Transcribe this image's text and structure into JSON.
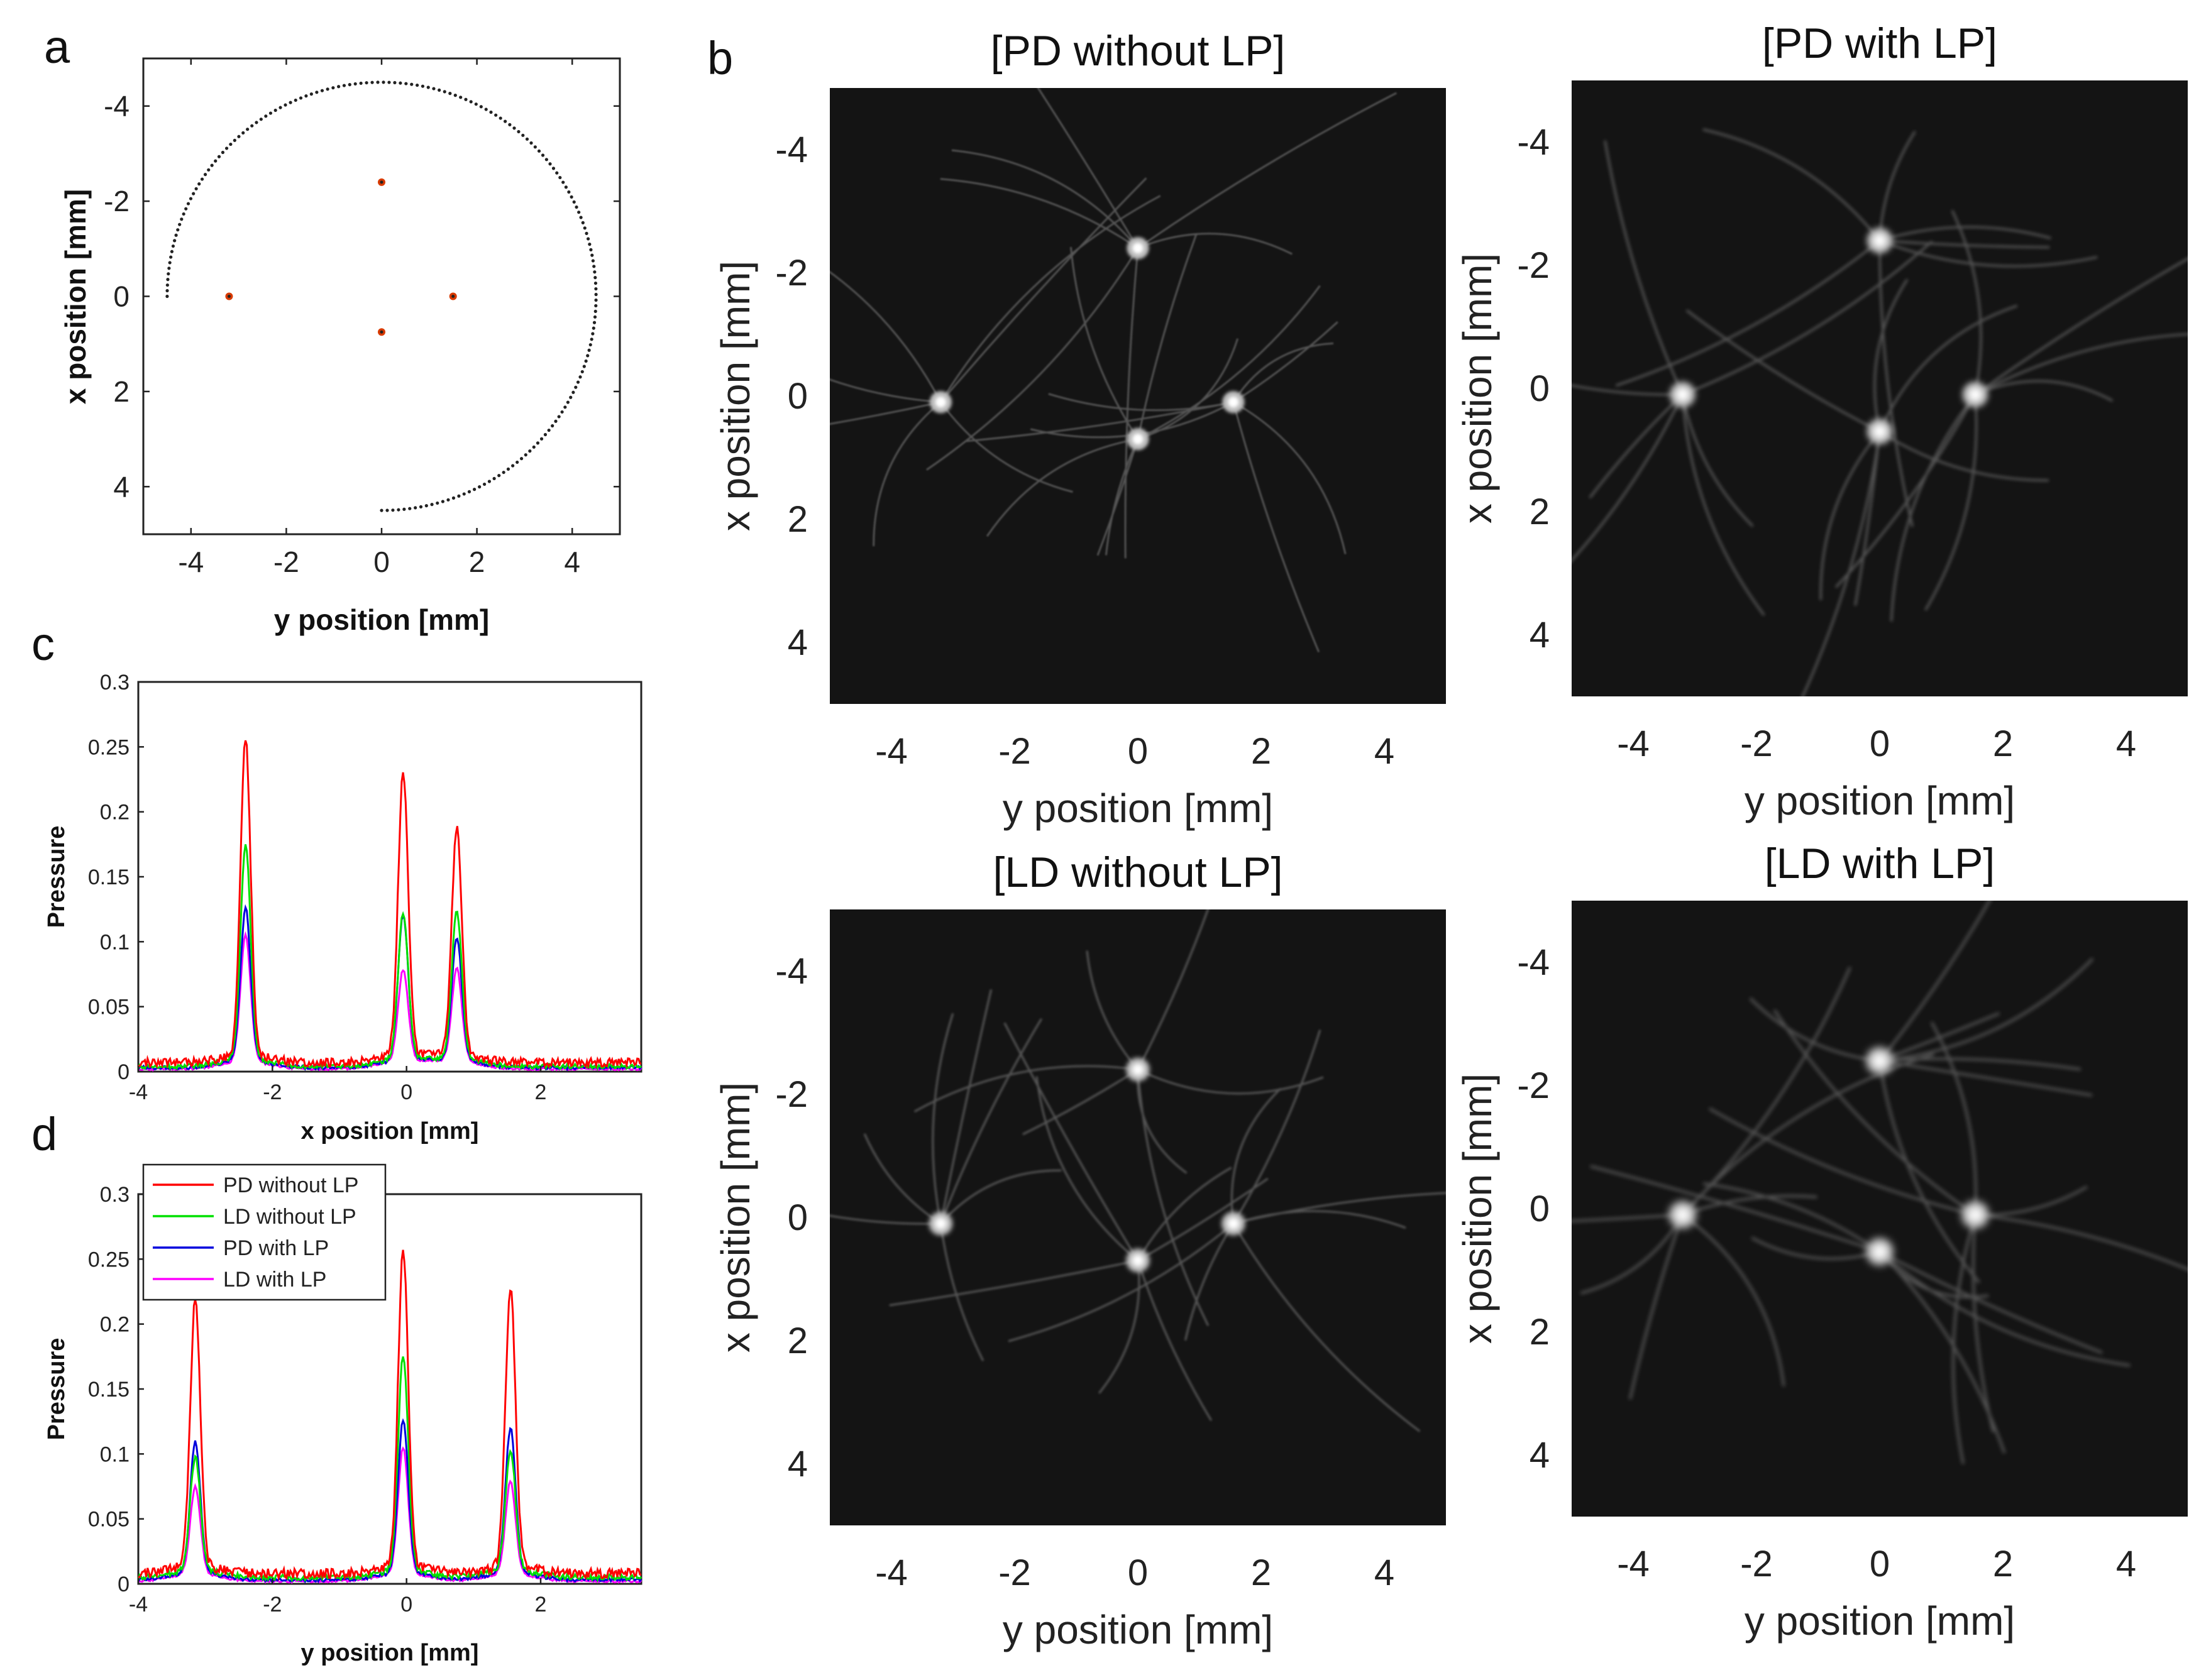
{
  "panel_labels": {
    "a": "a",
    "b": "b",
    "c": "c",
    "d": "d"
  },
  "chart_data": [
    {
      "id": "a",
      "type": "scatter",
      "title": "",
      "xlabel": "y position [mm]",
      "ylabel": "x position [mm]",
      "xlim": [
        -5,
        5
      ],
      "ylim": [
        -5,
        5
      ],
      "y_reversed": true,
      "xticks": [
        -4,
        -2,
        0,
        2,
        4
      ],
      "yticks": [
        -4,
        -2,
        0,
        2,
        4
      ],
      "grid": false,
      "ring": {
        "center_y": 0,
        "center_x": 0,
        "radius": 4.5,
        "start_deg": 180,
        "sweep_deg": 270,
        "points": 180
      },
      "targets": [
        {
          "y": 0,
          "x": -2.4
        },
        {
          "y": -3.2,
          "x": 0.0
        },
        {
          "y": 1.5,
          "x": 0.0
        },
        {
          "y": 0,
          "x": 0.75
        }
      ],
      "target_color": "#d83a00",
      "target_core_color": "#222222"
    },
    {
      "id": "c",
      "type": "line",
      "xlabel": "x position [mm]",
      "ylabel": "Pressure",
      "xlim": [
        -4,
        3.5
      ],
      "ylim": [
        0,
        0.3
      ],
      "xticks": [
        -4,
        -2,
        0,
        2
      ],
      "yticks": [
        0,
        0.05,
        0.1,
        0.15,
        0.2,
        0.25,
        0.3
      ],
      "ytick_labels": [
        "0",
        "0.05",
        "0.1",
        "0.15",
        "0.2",
        "0.25",
        "0.3"
      ],
      "peak_positions": [
        -2.4,
        -0.05,
        0.75
      ],
      "series": [
        {
          "name": "PD without LP",
          "color": "#ff0000",
          "baseline": 0.007,
          "peaks": [
            0.25,
            0.223,
            0.181
          ]
        },
        {
          "name": "LD without LP",
          "color": "#00e000",
          "baseline": 0.004,
          "peaks": [
            0.169,
            0.115,
            0.117
          ]
        },
        {
          "name": "PD with LP",
          "color": "#0000dd",
          "baseline": 0.003,
          "peaks": [
            0.12,
            0.114,
            0.097
          ]
        },
        {
          "name": "LD with LP",
          "color": "#ff00ff",
          "baseline": 0.002,
          "peaks": [
            0.099,
            0.072,
            0.073
          ]
        }
      ]
    },
    {
      "id": "d",
      "type": "line",
      "xlabel": "y position [mm]",
      "ylabel": "Pressure",
      "xlim": [
        -4,
        3.5
      ],
      "ylim": [
        0,
        0.3
      ],
      "xticks": [
        -4,
        -2,
        0,
        2
      ],
      "yticks": [
        0,
        0.05,
        0.1,
        0.15,
        0.2,
        0.25,
        0.3
      ],
      "ytick_labels": [
        "0",
        "0.05",
        "0.1",
        "0.15",
        "0.2",
        "0.25",
        "0.3"
      ],
      "legend_position": "top-left",
      "peak_positions": [
        -3.15,
        -0.05,
        1.55
      ],
      "series": [
        {
          "name": "PD without LP",
          "color": "#ff0000",
          "baseline": 0.008,
          "peaks": [
            0.213,
            0.25,
            0.222
          ]
        },
        {
          "name": "LD without LP",
          "color": "#00e000",
          "baseline": 0.005,
          "peaks": [
            0.092,
            0.169,
            0.097
          ]
        },
        {
          "name": "PD with LP",
          "color": "#0000dd",
          "baseline": 0.003,
          "peaks": [
            0.104,
            0.12,
            0.114
          ]
        },
        {
          "name": "LD with LP",
          "color": "#ff00ff",
          "baseline": 0.002,
          "peaks": [
            0.069,
            0.099,
            0.073
          ]
        }
      ]
    },
    {
      "id": "b",
      "type": "heatmap",
      "xlabel": "y position [mm]",
      "ylabel": "x position [mm]",
      "xlim": [
        -5,
        5
      ],
      "ylim": [
        -5,
        5
      ],
      "y_reversed": true,
      "xticks": [
        -4,
        -2,
        0,
        2,
        4
      ],
      "yticks": [
        -4,
        -2,
        0,
        2,
        4
      ],
      "colormap": "gray",
      "sources": [
        {
          "y": 0,
          "x": -2.4
        },
        {
          "y": -3.2,
          "x": 0.1
        },
        {
          "y": 1.55,
          "x": 0.1
        },
        {
          "y": 0,
          "x": 0.7
        }
      ],
      "images": [
        {
          "title": "[PD without LP]",
          "blur": 0.9
        },
        {
          "title": "[PD with LP]",
          "blur": 1.6
        },
        {
          "title": "[LD without LP]",
          "blur": 1.2
        },
        {
          "title": "[LD with LP]",
          "blur": 2.0
        }
      ]
    }
  ]
}
